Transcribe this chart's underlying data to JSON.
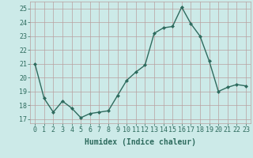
{
  "x": [
    0,
    1,
    2,
    3,
    4,
    5,
    6,
    7,
    8,
    9,
    10,
    11,
    12,
    13,
    14,
    15,
    16,
    17,
    18,
    19,
    20,
    21,
    22,
    23
  ],
  "y": [
    21.0,
    18.5,
    17.5,
    18.3,
    17.8,
    17.1,
    17.4,
    17.5,
    17.6,
    18.7,
    19.8,
    20.4,
    20.9,
    23.2,
    23.6,
    23.7,
    25.1,
    23.9,
    23.0,
    21.2,
    19.0,
    19.3,
    19.5,
    19.4
  ],
  "line_color": "#2e6b5e",
  "marker": "D",
  "markersize": 2.0,
  "linewidth": 1.0,
  "xlabel": "Humidex (Indice chaleur)",
  "xlim": [
    -0.5,
    23.5
  ],
  "ylim": [
    16.7,
    25.5
  ],
  "yticks": [
    17,
    18,
    19,
    20,
    21,
    22,
    23,
    24,
    25
  ],
  "xticks": [
    0,
    1,
    2,
    3,
    4,
    5,
    6,
    7,
    8,
    9,
    10,
    11,
    12,
    13,
    14,
    15,
    16,
    17,
    18,
    19,
    20,
    21,
    22,
    23
  ],
  "bg_color": "#cceae8",
  "grid_color": "#b8a0a0",
  "tick_color": "#2e6b5e",
  "label_color": "#2e6b5e",
  "xlabel_fontsize": 7.0,
  "tick_fontsize": 6.0
}
